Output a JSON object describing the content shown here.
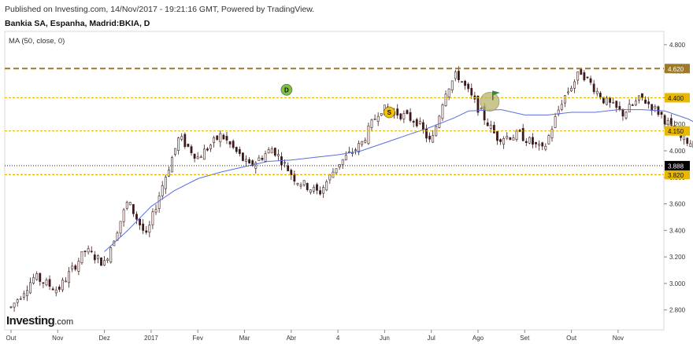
{
  "header": {
    "published": "Published on Investing.com, 14/Nov/2017 - 19:21:16 GMT, Powered by TradingView.",
    "title": "Bankia SA, Espanha, Madrid:BKIA, D",
    "indicator": "MA (50, close, 0)"
  },
  "logo": {
    "brand": "Investing",
    "suffix": ".com"
  },
  "colors": {
    "up": "#ffffff",
    "down": "#3d1a1a",
    "ma": "#5b6ee1",
    "level_strong": "#9c7a2c",
    "level": "#e8b800",
    "badge_d": "#7cc242",
    "badge_s": "#f2c200",
    "current_price_label": "#000000"
  },
  "chart_data": {
    "type": "candlestick",
    "title": "Bankia SA, Espanha, Madrid:BKIA, D",
    "ylim": [
      2.65,
      4.9
    ],
    "y_ticks": [
      "4.800",
      "4.600",
      "4.400",
      "4.200",
      "4.000",
      "3.800",
      "3.600",
      "3.400",
      "3.200",
      "3.000",
      "2.800"
    ],
    "x_ticks": [
      "Out",
      "Nov",
      "Dez",
      "2017",
      "Fev",
      "Mar",
      "Abr",
      "4",
      "Jun",
      "Jul",
      "Ago",
      "Set",
      "Out",
      "Nov"
    ],
    "horizontal_levels": [
      {
        "value": 4.62,
        "label": "4.620",
        "style": "strong"
      },
      {
        "value": 4.4,
        "label": "4.400",
        "style": "normal"
      },
      {
        "value": 4.15,
        "label": "4.150",
        "style": "normal"
      },
      {
        "value": 3.82,
        "label": "3.820",
        "style": "normal"
      }
    ],
    "current_price": {
      "value": 3.888,
      "label": "3.888"
    },
    "markers": [
      {
        "label": "D",
        "tick": "Mar",
        "offset": 0.9,
        "y": 4.46,
        "kind": "dividend"
      },
      {
        "label": "S",
        "tick": "Jun",
        "offset": 0.1,
        "y": 4.29,
        "kind": "split"
      }
    ],
    "flag": {
      "tick": "Ago",
      "offset": 0.25,
      "y": 4.37
    },
    "price_path": [
      [
        0.0,
        2.82
      ],
      [
        0.5,
        3.05
      ],
      [
        1.0,
        2.95
      ],
      [
        1.6,
        3.25
      ],
      [
        2.0,
        3.15
      ],
      [
        2.5,
        3.62
      ],
      [
        2.9,
        3.35
      ],
      [
        3.2,
        3.7
      ],
      [
        3.6,
        4.1
      ],
      [
        4.0,
        3.95
      ],
      [
        4.5,
        4.12
      ],
      [
        5.1,
        3.88
      ],
      [
        5.6,
        4.02
      ],
      [
        6.1,
        3.78
      ],
      [
        6.6,
        3.68
      ],
      [
        7.0,
        3.9
      ],
      [
        7.5,
        4.05
      ],
      [
        7.9,
        4.32
      ],
      [
        8.3,
        4.28
      ],
      [
        8.7,
        4.22
      ],
      [
        9.0,
        4.05
      ],
      [
        9.3,
        4.45
      ],
      [
        9.55,
        4.58
      ],
      [
        9.9,
        4.38
      ],
      [
        10.4,
        4.1
      ],
      [
        10.9,
        4.12
      ],
      [
        11.4,
        4.0
      ],
      [
        11.8,
        4.38
      ],
      [
        12.2,
        4.6
      ],
      [
        12.7,
        4.38
      ],
      [
        13.1,
        4.28
      ],
      [
        13.5,
        4.4
      ],
      [
        13.9,
        4.28
      ],
      [
        14.3,
        4.1
      ],
      [
        14.8,
        4.03
      ],
      [
        15.2,
        3.95
      ],
      [
        15.6,
        3.86
      ],
      [
        16.0,
        3.98
      ],
      [
        16.6,
        4.02
      ],
      [
        17.3,
        4.1
      ],
      [
        17.8,
        4.07
      ],
      [
        18.2,
        4.0
      ],
      [
        18.55,
        3.89
      ]
    ],
    "ma_path": [
      [
        2.0,
        3.24
      ],
      [
        2.5,
        3.4
      ],
      [
        3.0,
        3.58
      ],
      [
        3.5,
        3.7
      ],
      [
        4.0,
        3.79
      ],
      [
        4.5,
        3.84
      ],
      [
        5.0,
        3.88
      ],
      [
        5.5,
        3.92
      ],
      [
        6.0,
        3.93
      ],
      [
        6.5,
        3.95
      ],
      [
        7.0,
        3.97
      ],
      [
        7.5,
        4.0
      ],
      [
        8.0,
        4.06
      ],
      [
        8.5,
        4.12
      ],
      [
        9.0,
        4.18
      ],
      [
        9.5,
        4.25
      ],
      [
        9.8,
        4.3
      ],
      [
        10.5,
        4.31
      ],
      [
        11.0,
        4.27
      ],
      [
        11.5,
        4.27
      ],
      [
        12.0,
        4.29
      ],
      [
        12.5,
        4.29
      ],
      [
        13.0,
        4.31
      ],
      [
        13.5,
        4.31
      ],
      [
        14.0,
        4.3
      ],
      [
        14.5,
        4.24
      ],
      [
        15.0,
        4.15
      ],
      [
        15.5,
        4.1
      ],
      [
        16.0,
        4.07
      ],
      [
        16.5,
        4.05
      ],
      [
        17.0,
        4.04
      ],
      [
        17.5,
        4.02
      ],
      [
        18.0,
        4.02
      ],
      [
        18.5,
        4.0
      ]
    ]
  }
}
